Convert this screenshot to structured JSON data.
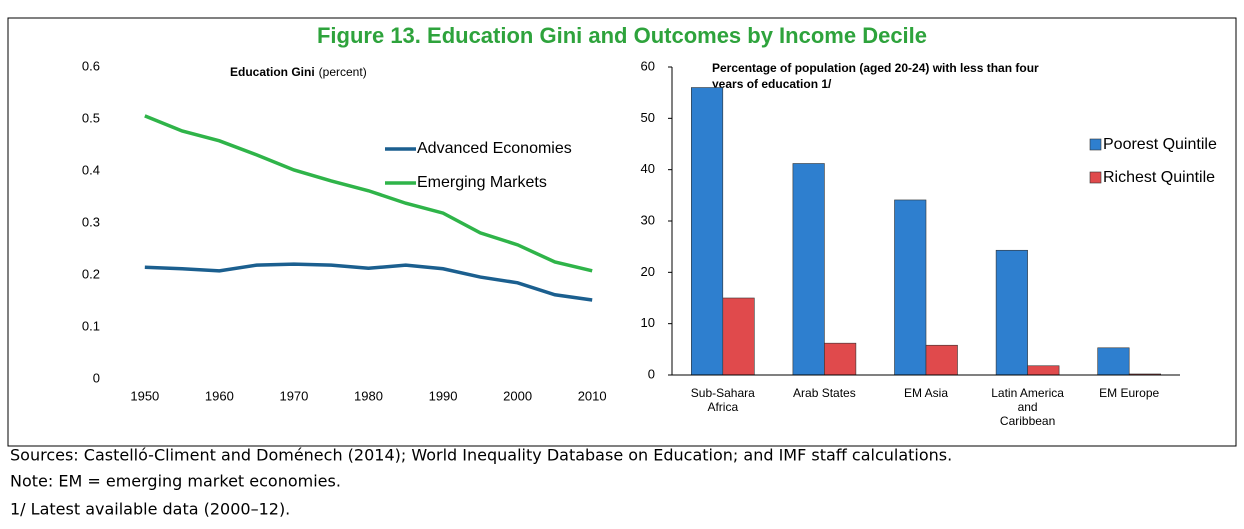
{
  "header": {
    "title": "Figure 13. Education Gini and Outcomes by Income Decile"
  },
  "chart_data": [
    {
      "type": "line",
      "title": "Education Gini",
      "subtitle": "(percent)",
      "x": [
        1950,
        1955,
        1960,
        1965,
        1970,
        1975,
        1980,
        1985,
        1990,
        1995,
        2000,
        2005,
        2010
      ],
      "series": [
        {
          "name": "Advanced Economies",
          "color": "#1b5f8f",
          "values": [
            0.215,
            0.212,
            0.208,
            0.219,
            0.221,
            0.219,
            0.213,
            0.219,
            0.212,
            0.196,
            0.185,
            0.162,
            0.152
          ]
        },
        {
          "name": "Emerging Markets",
          "color": "#2fb449",
          "values": [
            0.506,
            0.477,
            0.458,
            0.431,
            0.402,
            0.381,
            0.362,
            0.338,
            0.319,
            0.281,
            0.258,
            0.225,
            0.208
          ]
        }
      ],
      "xlim": [
        1946,
        2014
      ],
      "xticks": [
        1950,
        1960,
        1970,
        1980,
        1990,
        2000,
        2010
      ],
      "ylim": [
        0,
        0.6
      ],
      "yticks": [
        0,
        0.1,
        0.2,
        0.3,
        0.4,
        0.5,
        0.6
      ]
    },
    {
      "type": "bar",
      "title": "Percentage of population (aged 20-24) with less than four years of education 1/",
      "categories": [
        "Sub-Sahara Africa",
        "Arab States",
        "EM Asia",
        "Latin America and Caribbean",
        "EM Europe"
      ],
      "series": [
        {
          "name": "Poorest Quintile",
          "color": "#2e7fcf",
          "values": [
            56,
            41.2,
            34.1,
            24.3,
            5.3
          ]
        },
        {
          "name": "Richest Quintile",
          "color": "#e04a4c",
          "values": [
            15,
            6.2,
            5.8,
            1.8,
            0.2
          ]
        }
      ],
      "ylim": [
        0,
        60
      ],
      "yticks": [
        0,
        10,
        20,
        30,
        40,
        50,
        60
      ]
    }
  ],
  "notes": [
    "Sources: Castelló-Climent and Doménech (2014); World Inequality Database on Education; and IMF staff calculations.",
    "Note: EM = emerging market economies.",
    "1/ Latest available data (2000–12)."
  ]
}
